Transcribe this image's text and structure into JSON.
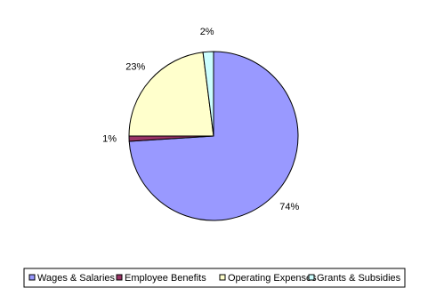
{
  "chart_data": {
    "type": "pie",
    "categories": [
      "Wages & Salaries",
      "Employee Benefits",
      "Operating Expenses",
      "Grants & Subsidies"
    ],
    "values": [
      74,
      1,
      23,
      2
    ],
    "value_labels": [
      "74%",
      "1%",
      "23%",
      "2%"
    ],
    "colors": [
      "#9999ff",
      "#993366",
      "#ffffcc",
      "#ccffff"
    ],
    "legend": "bottom"
  }
}
